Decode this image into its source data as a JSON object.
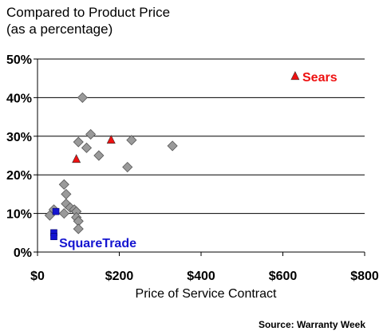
{
  "titles": {
    "line1": "Compared to Product Price",
    "line2": "(as a percentage)"
  },
  "source": "Source: Warranty Week",
  "chart_data": {
    "type": "scatter",
    "title": "Compared to Product Price (as a percentage)",
    "xlabel": "Price of Service Contract",
    "ylabel": "",
    "xlim": [
      0,
      800
    ],
    "ylim": [
      0,
      50
    ],
    "x_ticks": [
      "$0",
      "$200",
      "$400",
      "$600",
      "$800"
    ],
    "y_ticks": [
      "0%",
      "10%",
      "20%",
      "30%",
      "40%",
      "50%"
    ],
    "grid": "horizontal",
    "series": [
      {
        "name": "",
        "marker": "diamond",
        "color": "#9a9a9a",
        "points": [
          {
            "x": 30,
            "y": 9.5
          },
          {
            "x": 40,
            "y": 11
          },
          {
            "x": 65,
            "y": 17.5
          },
          {
            "x": 70,
            "y": 15
          },
          {
            "x": 70,
            "y": 12.5
          },
          {
            "x": 80,
            "y": 11.5
          },
          {
            "x": 65,
            "y": 10
          },
          {
            "x": 90,
            "y": 11
          },
          {
            "x": 95,
            "y": 10.5
          },
          {
            "x": 95,
            "y": 9
          },
          {
            "x": 100,
            "y": 8
          },
          {
            "x": 100,
            "y": 6
          },
          {
            "x": 110,
            "y": 40
          },
          {
            "x": 100,
            "y": 28.5
          },
          {
            "x": 120,
            "y": 27
          },
          {
            "x": 130,
            "y": 30.5
          },
          {
            "x": 150,
            "y": 25
          },
          {
            "x": 230,
            "y": 29
          },
          {
            "x": 220,
            "y": 22
          },
          {
            "x": 330,
            "y": 27.5
          }
        ]
      },
      {
        "name": "Sears",
        "marker": "triangle",
        "color": "#ee1111",
        "points": [
          {
            "x": 95,
            "y": 24
          },
          {
            "x": 180,
            "y": 29
          },
          {
            "x": 630,
            "y": 45.5
          }
        ]
      },
      {
        "name": "SquareTrade",
        "marker": "square",
        "color": "#1515d0",
        "points": [
          {
            "x": 45,
            "y": 10.5
          },
          {
            "x": 40,
            "y": 5
          },
          {
            "x": 40,
            "y": 4
          }
        ]
      }
    ],
    "annotations": [
      {
        "text": "Sears",
        "color": "#ee1111"
      },
      {
        "text": "SquareTrade",
        "color": "#1515d0"
      }
    ]
  }
}
